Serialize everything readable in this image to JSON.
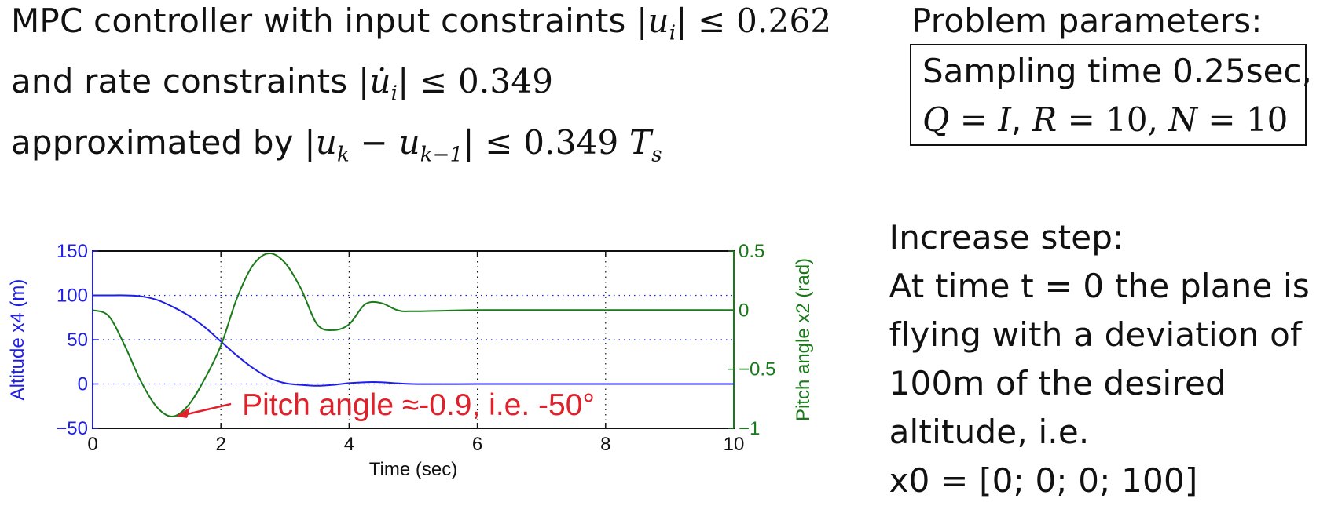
{
  "slide": {
    "title_lines": [
      [
        "MPC controller with input constraints |",
        "u",
        "i",
        "| ≤ 0.262"
      ],
      [
        "and rate constraints |",
        "u̇",
        "i",
        "| ≤ 0.349"
      ],
      [
        "approximated by |",
        "u",
        "k",
        " − ",
        "u",
        "k−1",
        "| ≤ 0.349 ",
        "T",
        "s"
      ]
    ],
    "params_heading": "Problem parameters:",
    "params_line1": "Sampling time 0.25sec,",
    "params_line2": [
      "Q",
      " = ",
      "I",
      ", ",
      "R",
      " = 10, ",
      "N",
      " = 10"
    ],
    "desc_lines": [
      "Increase step:",
      "At time t = 0 the plane is",
      "flying with a deviation of",
      "100m of the desired",
      "altitude, i.e.",
      "x0 = [0; 0; 0; 100]"
    ]
  },
  "colors": {
    "altitude": "#1f1fe6",
    "pitch": "#1a7a1a",
    "annotation": "#e0202a",
    "axis": "#111111"
  },
  "chart_data": {
    "type": "line",
    "xlabel": "Time (sec)",
    "ylabel_left": "Altitude x4 (m)",
    "ylabel_right": "Pitch angle x2 (rad)",
    "xlim": [
      0,
      10
    ],
    "ylim_left": [
      -50,
      150
    ],
    "ylim_right": [
      -1,
      0.5
    ],
    "x_ticks": [
      "0",
      "2",
      "4",
      "6",
      "8",
      "10"
    ],
    "y_ticks_left": [
      "150",
      "100",
      "50",
      "0",
      "−50"
    ],
    "y_ticks_right": [
      "0.5",
      "0",
      "−0.5",
      "−1"
    ],
    "grid": "dotted",
    "series": [
      {
        "name": "Altitude x4",
        "axis": "left",
        "x": [
          0,
          0.25,
          0.5,
          0.75,
          1.0,
          1.25,
          1.5,
          1.75,
          2.0,
          2.25,
          2.5,
          2.75,
          3.0,
          3.25,
          3.5,
          3.75,
          4.0,
          4.25,
          4.5,
          5,
          6,
          7,
          8,
          9,
          10
        ],
        "y": [
          100,
          100,
          100,
          99,
          95,
          87,
          77,
          64,
          48,
          32,
          18,
          7,
          1,
          -1,
          -2,
          -1,
          1,
          2,
          2,
          0,
          0,
          0,
          0,
          0,
          0
        ]
      },
      {
        "name": "Pitch angle x2",
        "axis": "right",
        "x": [
          0,
          0.25,
          0.5,
          0.75,
          1.0,
          1.25,
          1.5,
          1.75,
          2.0,
          2.25,
          2.5,
          2.75,
          3.0,
          3.25,
          3.5,
          3.75,
          4.0,
          4.25,
          4.5,
          4.75,
          5,
          6,
          7,
          8,
          9,
          10
        ],
        "y": [
          0,
          -0.05,
          -0.3,
          -0.6,
          -0.82,
          -0.9,
          -0.8,
          -0.58,
          -0.3,
          0.1,
          0.38,
          0.48,
          0.4,
          0.18,
          -0.12,
          -0.17,
          -0.12,
          0.05,
          0.06,
          0.0,
          -0.01,
          0.0,
          0.0,
          0.0,
          0.0,
          0.0
        ]
      }
    ],
    "annotation": {
      "text": "Pitch angle ≈-0.9, i.e. -50°",
      "points_to": {
        "x": 1.3,
        "y": -0.9,
        "axis": "right"
      }
    }
  }
}
